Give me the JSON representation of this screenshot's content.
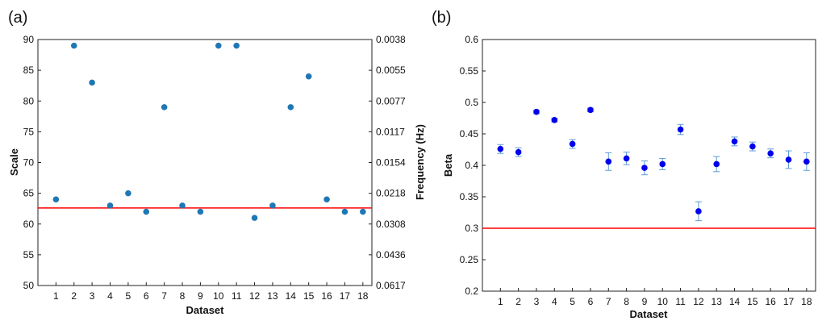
{
  "chart_data": [
    {
      "type": "scatter",
      "panel_label": "(a)",
      "xlabel": "Dataset",
      "ylabel": "Scale",
      "ylabel_right": "Frequency (Hz)",
      "x": [
        1,
        2,
        3,
        4,
        5,
        6,
        7,
        8,
        9,
        10,
        11,
        12,
        13,
        14,
        15,
        16,
        17,
        18
      ],
      "xticks": [
        "1",
        "2",
        "3",
        "4",
        "5",
        "6",
        "7",
        "8",
        "9",
        "10",
        "11",
        "12",
        "13",
        "14",
        "15",
        "16",
        "17",
        "18"
      ],
      "values": [
        64,
        89,
        83,
        63,
        65,
        62,
        79,
        63,
        62,
        89,
        89,
        61,
        63,
        79,
        84,
        64,
        62,
        62
      ],
      "ylim": [
        50,
        90
      ],
      "xlim": [
        0,
        18.5
      ],
      "yticks": [
        "50",
        "55",
        "60",
        "65",
        "70",
        "75",
        "80",
        "85",
        "90"
      ],
      "yticks_right": [
        "0.0617",
        "0.0436",
        "0.0308",
        "0.0218",
        "0.0154",
        "0.0117",
        "0.0077",
        "0.0055",
        "0.0038"
      ],
      "reference_line": 62.6,
      "marker_color": "#1f77b4",
      "line_color": "#ff0000",
      "grid": false
    },
    {
      "type": "scatter",
      "panel_label": "(b)",
      "xlabel": "Dataset",
      "ylabel": "Beta",
      "x": [
        1,
        2,
        3,
        4,
        5,
        6,
        7,
        8,
        9,
        10,
        11,
        12,
        13,
        14,
        15,
        16,
        17,
        18
      ],
      "xticks": [
        "1",
        "2",
        "3",
        "4",
        "5",
        "6",
        "7",
        "8",
        "9",
        "10",
        "11",
        "12",
        "13",
        "14",
        "15",
        "16",
        "17",
        "18"
      ],
      "values": [
        0.426,
        0.421,
        0.485,
        0.472,
        0.434,
        0.488,
        0.406,
        0.411,
        0.396,
        0.402,
        0.457,
        0.327,
        0.402,
        0.438,
        0.43,
        0.419,
        0.409,
        0.406
      ],
      "errors": [
        0.007,
        0.007,
        0.003,
        0.003,
        0.007,
        0.003,
        0.014,
        0.01,
        0.011,
        0.009,
        0.008,
        0.015,
        0.012,
        0.007,
        0.007,
        0.007,
        0.014,
        0.014
      ],
      "ylim": [
        0.2,
        0.6
      ],
      "xlim": [
        0,
        18.5
      ],
      "yticks": [
        "0.2",
        "0.25",
        "0.3",
        "0.35",
        "0.4",
        "0.45",
        "0.5",
        "0.55",
        "0.6"
      ],
      "reference_line": 0.3,
      "marker_color": "#0000ee",
      "errorbar_color": "#5b9bd5",
      "line_color": "#ff0000",
      "grid": false
    }
  ]
}
